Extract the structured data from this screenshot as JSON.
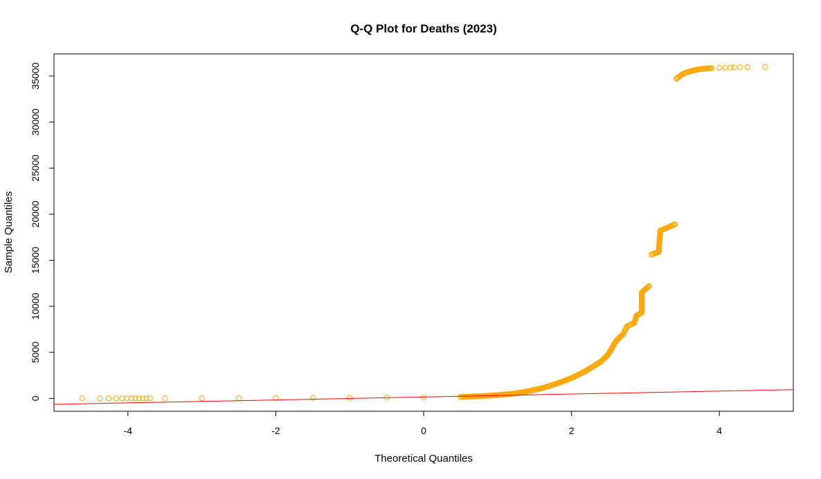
{
  "chart_data": {
    "type": "scatter",
    "title": "Q-Q Plot for Deaths (2023)",
    "xlabel": "Theoretical Quantiles",
    "ylabel": "Sample Quantiles",
    "xlim": [
      -5,
      5
    ],
    "ylim": [
      -1400,
      37400
    ],
    "x_ticks": [
      -4,
      -2,
      0,
      2,
      4
    ],
    "y_ticks": [
      0,
      5000,
      10000,
      15000,
      20000,
      25000,
      30000,
      35000
    ],
    "x_tick_labels": [
      "-4",
      "-2",
      "0",
      "2",
      "4"
    ],
    "y_tick_labels": [
      "0",
      "5000",
      "10000",
      "15000",
      "20000",
      "25000",
      "30000",
      "35000"
    ],
    "grid": false,
    "point_color": "#FFA500",
    "line_color": "#FF0000",
    "series": [
      {
        "points": [
          [
            -4.62,
            0
          ],
          [
            -4.38,
            0
          ],
          [
            -4.26,
            0
          ],
          [
            -4.16,
            0
          ],
          [
            -4.08,
            0
          ],
          [
            -4.01,
            0
          ],
          [
            -3.95,
            0
          ],
          [
            -3.9,
            0
          ],
          [
            -3.85,
            0
          ],
          [
            -3.8,
            0
          ],
          [
            -3.75,
            0
          ],
          [
            -3.7,
            0
          ],
          [
            -3.5,
            5
          ],
          [
            -3.0,
            10
          ],
          [
            -2.5,
            20
          ],
          [
            -2.0,
            30
          ],
          [
            -1.5,
            45
          ],
          [
            -1.0,
            60
          ],
          [
            -0.5,
            80
          ],
          [
            0.0,
            100
          ],
          [
            0.5,
            150
          ],
          [
            0.8,
            250
          ],
          [
            1.0,
            350
          ],
          [
            1.2,
            500
          ],
          [
            1.4,
            750
          ],
          [
            1.6,
            1100
          ],
          [
            1.8,
            1600
          ],
          [
            2.0,
            2200
          ],
          [
            2.2,
            3000
          ],
          [
            2.4,
            4000
          ],
          [
            2.5,
            4800
          ],
          [
            2.55,
            5500
          ],
          [
            2.6,
            6200
          ],
          [
            2.7,
            7000
          ],
          [
            2.75,
            7800
          ],
          [
            2.85,
            8200
          ],
          [
            2.88,
            9000
          ],
          [
            2.95,
            9300
          ],
          [
            2.95,
            11500
          ],
          [
            3.05,
            12200
          ],
          [
            3.08,
            15600
          ],
          [
            3.18,
            15900
          ],
          [
            3.2,
            18200
          ],
          [
            3.4,
            18900
          ],
          [
            3.42,
            34700
          ],
          [
            3.5,
            35200
          ],
          [
            3.6,
            35500
          ],
          [
            3.7,
            35700
          ],
          [
            3.8,
            35800
          ],
          [
            3.9,
            35850
          ],
          [
            4.0,
            35900
          ],
          [
            4.08,
            35900
          ],
          [
            4.15,
            35920
          ],
          [
            4.2,
            35940
          ],
          [
            4.28,
            35950
          ],
          [
            4.38,
            35960
          ],
          [
            4.62,
            35980
          ]
        ]
      }
    ],
    "reference_line": {
      "intercept": 150,
      "slope": 160
    }
  }
}
